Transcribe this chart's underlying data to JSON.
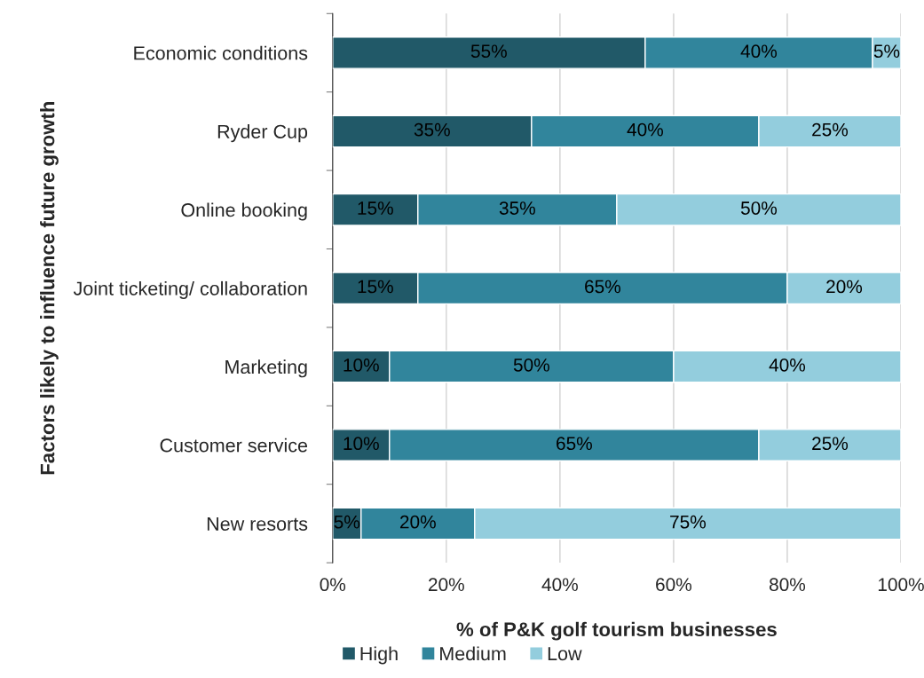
{
  "chart_data": {
    "type": "bar",
    "orientation": "horizontal",
    "stacked": true,
    "ylabel": "Factors likely to influence future growth",
    "xlabel": "% of P&K golf tourism businesses",
    "categories": [
      "Economic conditions",
      "Ryder Cup",
      "Online booking",
      "Joint ticketing/ collaboration",
      "Marketing",
      "Customer service",
      "New resorts"
    ],
    "series": [
      {
        "name": "High",
        "color": "#215968",
        "values": [
          55,
          35,
          15,
          15,
          10,
          10,
          5
        ],
        "value_labels": [
          "55%",
          "35%",
          "15%",
          "15%",
          "10%",
          "10%",
          "5%"
        ]
      },
      {
        "name": "Medium",
        "color": "#31859c",
        "values": [
          40,
          40,
          35,
          65,
          50,
          65,
          20
        ],
        "value_labels": [
          "40%",
          "40%",
          "35%",
          "65%",
          "50%",
          "65%",
          "20%"
        ]
      },
      {
        "name": "Low",
        "color": "#93cddd",
        "values": [
          5,
          25,
          50,
          20,
          40,
          25,
          75
        ],
        "value_labels": [
          "5%",
          "25%",
          "50%",
          "20%",
          "40%",
          "25%",
          "75%"
        ]
      }
    ],
    "xlim": [
      0,
      100
    ],
    "xticks": [
      {
        "value": 0,
        "label": "0%"
      },
      {
        "value": 20,
        "label": "20%"
      },
      {
        "value": 40,
        "label": "40%"
      },
      {
        "value": 60,
        "label": "60%"
      },
      {
        "value": 80,
        "label": "80%"
      },
      {
        "value": 100,
        "label": "100%"
      }
    ],
    "grid": "x",
    "legend": "bottom"
  }
}
